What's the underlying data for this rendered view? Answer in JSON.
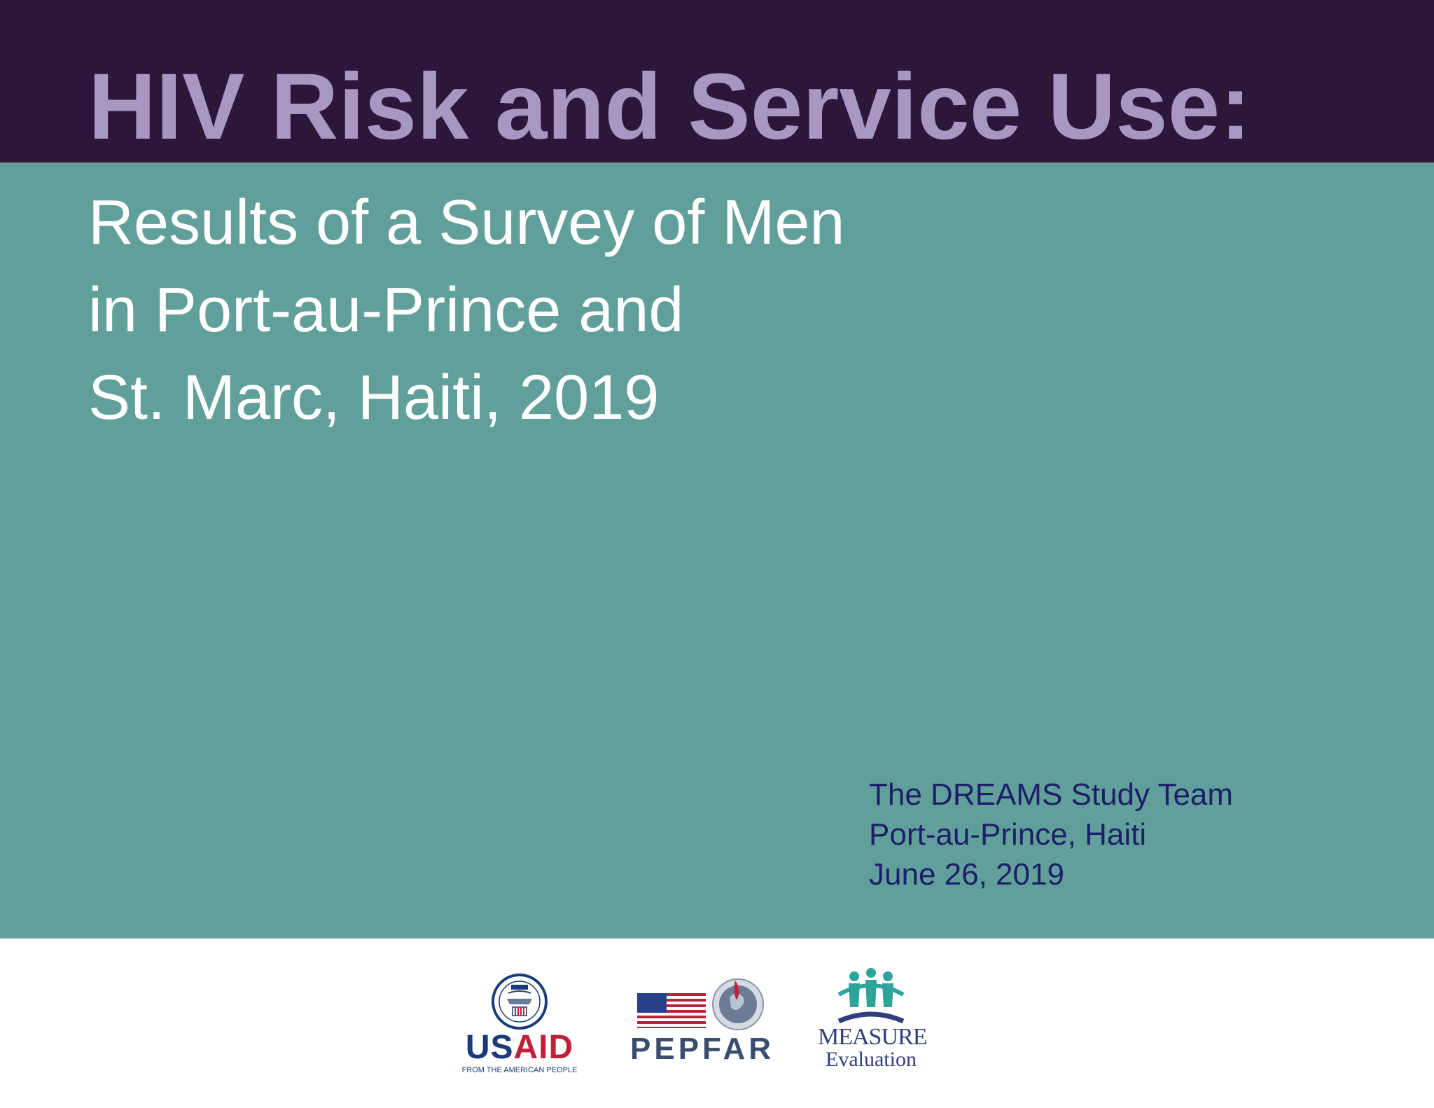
{
  "slide": {
    "title": "HIV Risk and Service Use:",
    "subtitle_lines": [
      "Results of a Survey of Men",
      "in Port-au-Prince and",
      "St. Marc, Haiti, 2019"
    ],
    "byline_lines": [
      "The DREAMS Study Team",
      "Port-au-Prince, Haiti",
      "June 26, 2019"
    ]
  },
  "logos": {
    "usaid": {
      "word_us": "US",
      "word_aid": "AID",
      "tagline": "FROM THE AMERICAN PEOPLE",
      "icon": "usaid-seal-icon"
    },
    "pepfar": {
      "word": "PEPFAR",
      "icon": "pepfar-flag-globe-icon"
    },
    "measure": {
      "word": "MEASURE",
      "sub": "Evaluation",
      "icon": "measure-people-icon"
    }
  },
  "colors": {
    "header": "#2c1639",
    "title": "#a797c2",
    "teal": "#61a09a",
    "byline": "#1e1e6a"
  }
}
